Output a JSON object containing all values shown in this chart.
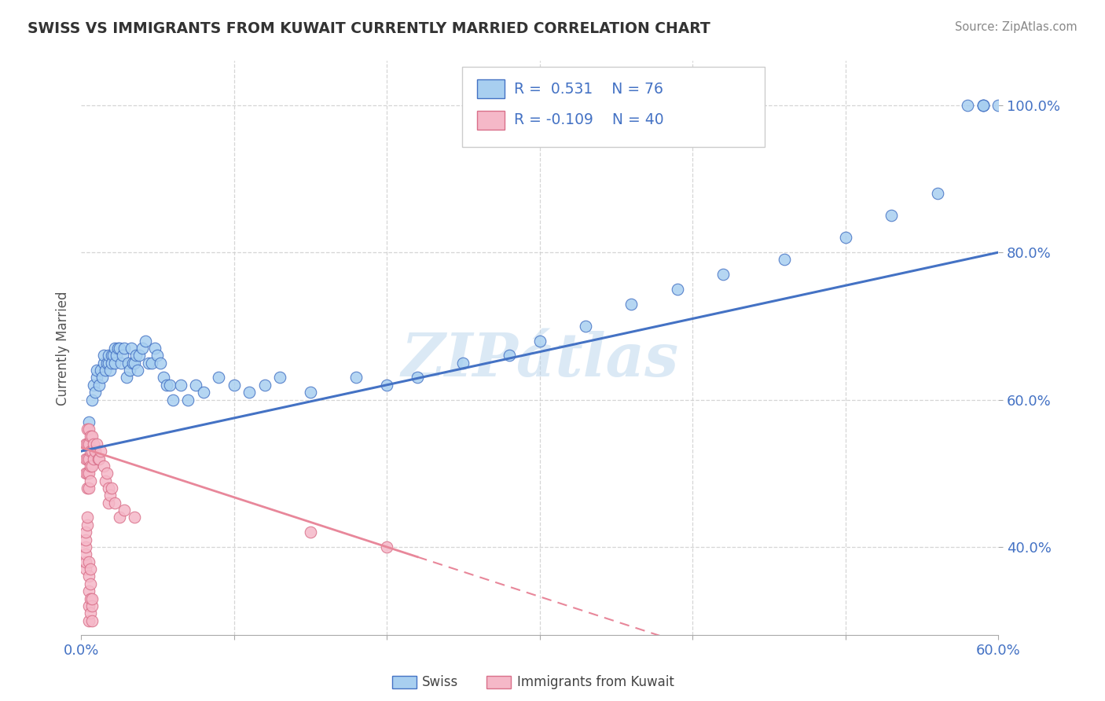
{
  "title": "SWISS VS IMMIGRANTS FROM KUWAIT CURRENTLY MARRIED CORRELATION CHART",
  "source": "Source: ZipAtlas.com",
  "ylabel": "Currently Married",
  "xlim": [
    0.0,
    0.6
  ],
  "ylim": [
    0.28,
    1.06
  ],
  "ytick_labels": [
    "40.0%",
    "60.0%",
    "80.0%",
    "100.0%"
  ],
  "ytick_values": [
    0.4,
    0.6,
    0.8,
    1.0
  ],
  "color_swiss": "#A8CFF0",
  "color_kuwait": "#F5B8C8",
  "color_blue_text": "#4472C4",
  "color_line_swiss": "#4472C4",
  "color_line_kuwait": "#E8879A",
  "watermark": "ZIPátlas",
  "swiss_x": [
    0.005,
    0.007,
    0.008,
    0.009,
    0.01,
    0.01,
    0.012,
    0.013,
    0.014,
    0.015,
    0.015,
    0.016,
    0.017,
    0.018,
    0.018,
    0.019,
    0.02,
    0.02,
    0.021,
    0.022,
    0.022,
    0.023,
    0.024,
    0.025,
    0.026,
    0.027,
    0.028,
    0.03,
    0.031,
    0.032,
    0.033,
    0.034,
    0.035,
    0.036,
    0.037,
    0.038,
    0.04,
    0.042,
    0.044,
    0.046,
    0.048,
    0.05,
    0.052,
    0.054,
    0.056,
    0.058,
    0.06,
    0.065,
    0.07,
    0.075,
    0.08,
    0.09,
    0.1,
    0.11,
    0.12,
    0.13,
    0.15,
    0.18,
    0.2,
    0.22,
    0.25,
    0.28,
    0.3,
    0.33,
    0.36,
    0.39,
    0.42,
    0.46,
    0.5,
    0.53,
    0.56,
    0.58,
    0.59,
    0.59,
    0.59,
    0.6
  ],
  "swiss_y": [
    0.57,
    0.6,
    0.62,
    0.61,
    0.63,
    0.64,
    0.62,
    0.64,
    0.63,
    0.65,
    0.66,
    0.64,
    0.65,
    0.65,
    0.66,
    0.64,
    0.66,
    0.65,
    0.66,
    0.65,
    0.67,
    0.66,
    0.67,
    0.67,
    0.65,
    0.66,
    0.67,
    0.63,
    0.65,
    0.64,
    0.67,
    0.65,
    0.65,
    0.66,
    0.64,
    0.66,
    0.67,
    0.68,
    0.65,
    0.65,
    0.67,
    0.66,
    0.65,
    0.63,
    0.62,
    0.62,
    0.6,
    0.62,
    0.6,
    0.62,
    0.61,
    0.63,
    0.62,
    0.61,
    0.62,
    0.63,
    0.61,
    0.63,
    0.62,
    0.63,
    0.65,
    0.66,
    0.68,
    0.7,
    0.73,
    0.75,
    0.77,
    0.79,
    0.82,
    0.85,
    0.88,
    1.0,
    1.0,
    1.0,
    1.0,
    1.0
  ],
  "kuwait_x": [
    0.003,
    0.003,
    0.003,
    0.004,
    0.004,
    0.004,
    0.004,
    0.004,
    0.005,
    0.005,
    0.005,
    0.005,
    0.005,
    0.006,
    0.006,
    0.006,
    0.006,
    0.007,
    0.007,
    0.007,
    0.008,
    0.008,
    0.009,
    0.01,
    0.011,
    0.012,
    0.013,
    0.015,
    0.016,
    0.017,
    0.018,
    0.018,
    0.019,
    0.02,
    0.022,
    0.025,
    0.028,
    0.035,
    0.15,
    0.2
  ],
  "kuwait_y": [
    0.54,
    0.52,
    0.5,
    0.56,
    0.54,
    0.52,
    0.5,
    0.48,
    0.56,
    0.54,
    0.52,
    0.5,
    0.48,
    0.55,
    0.53,
    0.51,
    0.49,
    0.55,
    0.53,
    0.51,
    0.54,
    0.52,
    0.53,
    0.54,
    0.52,
    0.52,
    0.53,
    0.51,
    0.49,
    0.5,
    0.48,
    0.46,
    0.47,
    0.48,
    0.46,
    0.44,
    0.45,
    0.44,
    0.42,
    0.4
  ],
  "kuwait_low_y": [
    0.37,
    0.38,
    0.39,
    0.4,
    0.41,
    0.42,
    0.43,
    0.44,
    0.3,
    0.32,
    0.34,
    0.36,
    0.38,
    0.31,
    0.33,
    0.35,
    0.37,
    0.3,
    0.32,
    0.33
  ],
  "kuwait_low_x": [
    0.003,
    0.003,
    0.003,
    0.003,
    0.003,
    0.003,
    0.004,
    0.004,
    0.005,
    0.005,
    0.005,
    0.005,
    0.005,
    0.006,
    0.006,
    0.006,
    0.006,
    0.007,
    0.007,
    0.007
  ],
  "background_color": "#FFFFFF",
  "grid_color": "#CCCCCC"
}
